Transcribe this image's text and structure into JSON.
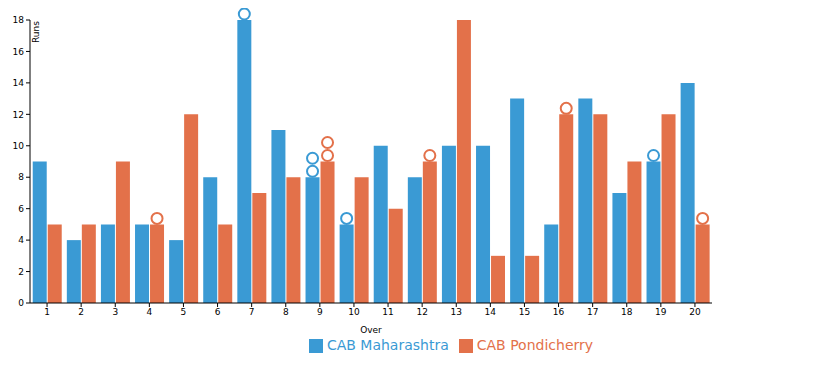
{
  "chart_data": {
    "type": "bar",
    "x_label": "Over",
    "y_label": "Runs",
    "categories": [
      "1",
      "2",
      "3",
      "4",
      "5",
      "6",
      "7",
      "8",
      "9",
      "10",
      "11",
      "12",
      "13",
      "14",
      "15",
      "16",
      "17",
      "18",
      "19",
      "20"
    ],
    "series": [
      {
        "name": "CAB Maharashtra",
        "color": "#3a9ad4",
        "values": [
          9,
          4,
          5,
          5,
          4,
          8,
          18,
          11,
          8,
          5,
          10,
          8,
          10,
          10,
          13,
          5,
          13,
          7,
          9,
          14
        ],
        "wickets": [
          0,
          0,
          0,
          0,
          0,
          0,
          1,
          0,
          2,
          1,
          0,
          0,
          0,
          0,
          0,
          0,
          0,
          0,
          1,
          0
        ]
      },
      {
        "name": "CAB Pondicherry",
        "color": "#e3714a",
        "values": [
          5,
          5,
          9,
          5,
          12,
          5,
          7,
          8,
          9,
          8,
          6,
          9,
          18,
          3,
          3,
          12,
          12,
          9,
          12,
          5
        ],
        "wickets": [
          0,
          0,
          0,
          1,
          0,
          0,
          0,
          0,
          2,
          0,
          0,
          1,
          0,
          0,
          0,
          1,
          0,
          0,
          0,
          1
        ]
      }
    ],
    "ylim": [
      0,
      18
    ],
    "yticks": [
      0,
      2,
      4,
      6,
      8,
      10,
      12,
      14,
      16,
      18
    ],
    "grid": false,
    "legend": "bottom"
  }
}
